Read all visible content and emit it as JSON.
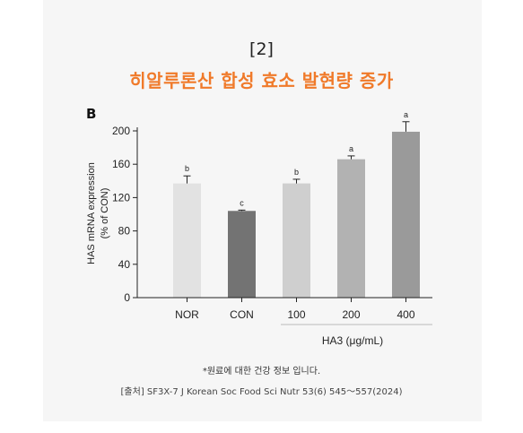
{
  "heading": {
    "number": "[2]",
    "title": "히알루론산 합성 효소 발현량 증가",
    "title_color": "#f07a2a"
  },
  "panel_label": "B",
  "chart_data": {
    "type": "bar",
    "ylabel_line1": "HAS mRNA expression",
    "ylabel_line2": "(% of CON)",
    "xlabel": "HA3 (μg/mL)",
    "ylim": [
      0,
      200
    ],
    "yticks": [
      0,
      40,
      80,
      120,
      160,
      200
    ],
    "categories": [
      "NOR",
      "CON",
      "100",
      "200",
      "400"
    ],
    "values": [
      137,
      104,
      137,
      166,
      199
    ],
    "errors": [
      9,
      1,
      5,
      4,
      12
    ],
    "significance": [
      "b",
      "c",
      "b",
      "a",
      "a"
    ],
    "bar_colors": [
      "#e2e2e2",
      "#737373",
      "#cfcfcf",
      "#b2b2b2",
      "#9a9a9a"
    ],
    "grid": false,
    "legend": "none"
  },
  "footer": {
    "note": "*원료에 대한 건강 정보 입니다.",
    "source": "[출처] SF3X-7 J Korean Soc Food Sci Nutr 53(6) 545〜557(2024)"
  }
}
